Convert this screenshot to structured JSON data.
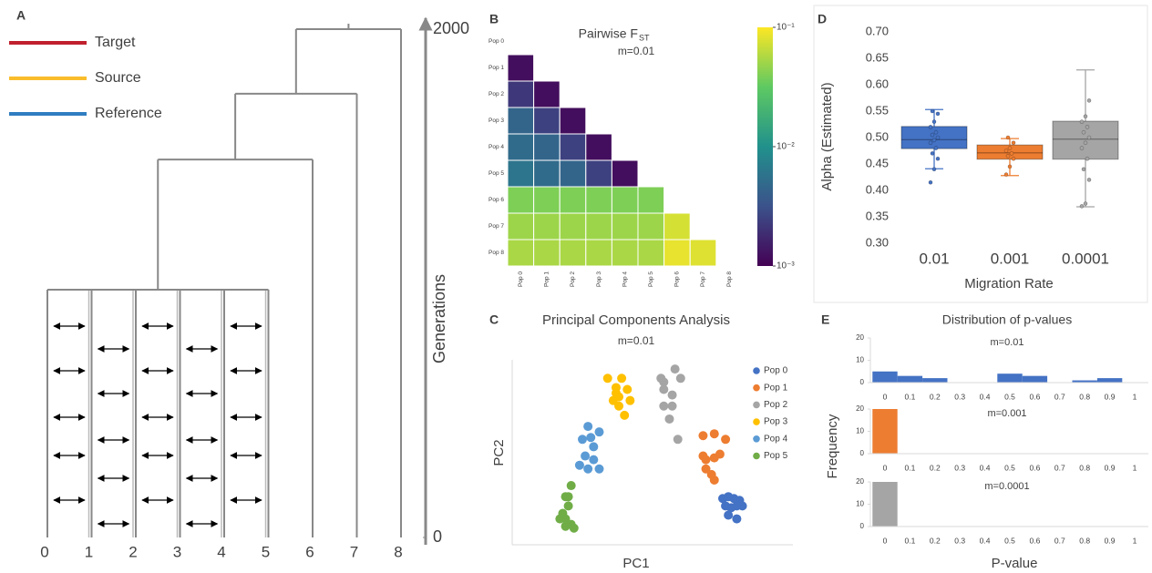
{
  "chart_data": [
    {
      "type": "tree",
      "panel": "A",
      "series": [
        {
          "name": "Target",
          "color": "#c0202e"
        },
        {
          "name": "Source",
          "color": "#f9bd2b"
        },
        {
          "name": "Reference",
          "color": "#2f7dc0"
        }
      ],
      "x": [
        0,
        1,
        2,
        3,
        4,
        5,
        6,
        7,
        8
      ],
      "merge_heights": [
        975,
        1487,
        1746,
        2000
      ],
      "ylim": [
        0,
        2000
      ],
      "yticks": [
        0,
        2000
      ],
      "ylabel": "Generations"
    },
    {
      "type": "heatmap",
      "panel": "B",
      "title": "Pairwise F",
      "title_subscript": "ST",
      "subtitle": "m=0.01",
      "categories": [
        "Pop 0",
        "Pop 1",
        "Pop 2",
        "Pop 3",
        "Pop 4",
        "Pop 5",
        "Pop 6",
        "Pop 7",
        "Pop 8"
      ],
      "values": [
        [],
        [
          0.0012
        ],
        [
          0.0022,
          0.0012
        ],
        [
          0.0045,
          0.0025,
          0.0012
        ],
        [
          0.005,
          0.0045,
          0.0025,
          0.0012
        ],
        [
          0.006,
          0.005,
          0.0045,
          0.0025,
          0.0012
        ],
        [
          0.04,
          0.04,
          0.04,
          0.04,
          0.04,
          0.04
        ],
        [
          0.05,
          0.05,
          0.05,
          0.05,
          0.05,
          0.05,
          0.075
        ],
        [
          0.055,
          0.055,
          0.055,
          0.055,
          0.055,
          0.055,
          0.085,
          0.08
        ]
      ],
      "cmap": "viridis",
      "zscale": "log",
      "zlim": [
        0.001,
        0.1
      ],
      "zticks": [
        {
          "value": 0.1,
          "label": "10⁻¹"
        },
        {
          "value": 0.01,
          "label": "10⁻²"
        },
        {
          "value": 0.001,
          "label": "10⁻³"
        }
      ]
    },
    {
      "type": "scatter",
      "panel": "C",
      "title": "Principal Components Analysis",
      "subtitle": "m=0.01",
      "xlabel": "PC1",
      "ylabel": "PC2",
      "xlim": [
        0,
        100
      ],
      "ylim": [
        0,
        100
      ],
      "series": [
        {
          "name": "Pop 0",
          "color": "#4472c4",
          "x": [
            75,
            77,
            79,
            81,
            76,
            78,
            80,
            82,
            77,
            80
          ],
          "y": [
            25,
            26,
            25,
            24,
            21,
            20,
            21,
            21,
            16,
            14
          ]
        },
        {
          "name": "Pop 1",
          "color": "#ed7d31",
          "x": [
            68,
            72,
            76,
            68,
            72,
            69,
            71,
            72,
            69,
            74
          ],
          "y": [
            59,
            60,
            57,
            48,
            47,
            41,
            38,
            35,
            46,
            49
          ]
        },
        {
          "name": "Pop 2",
          "color": "#a5a5a5",
          "x": [
            53,
            58,
            60,
            54,
            57,
            54,
            57,
            56,
            59,
            54
          ],
          "y": [
            90,
            95,
            90,
            84,
            81,
            75,
            75,
            68,
            57,
            88
          ]
        },
        {
          "name": "Pop 3",
          "color": "#ffc000",
          "x": [
            34,
            39,
            37,
            41,
            38,
            42,
            36,
            38,
            40,
            37
          ],
          "y": [
            90,
            90,
            85,
            84,
            80,
            78,
            78,
            75,
            70,
            82
          ]
        },
        {
          "name": "Pop 4",
          "color": "#5b9bd5",
          "x": [
            27,
            31,
            25,
            29,
            26,
            29,
            27,
            31,
            24,
            28
          ],
          "y": [
            64,
            61,
            57,
            53,
            48,
            46,
            41,
            41,
            43,
            58
          ]
        },
        {
          "name": "Pop 5",
          "color": "#70ad47",
          "x": [
            21,
            19,
            20,
            18,
            19,
            21,
            19,
            22,
            17,
            20
          ],
          "y": [
            32,
            26,
            21,
            17,
            14,
            11,
            10,
            9,
            14,
            26
          ]
        }
      ]
    },
    {
      "type": "box",
      "panel": "D",
      "categories": [
        "0.01",
        "0.001",
        "0.0001"
      ],
      "xlabel": "Migration Rate",
      "ylabel": "Alpha (Estimated)",
      "ylim": [
        0.3,
        0.7
      ],
      "yticks": [
        {
          "value": 0.3,
          "label": "0.30"
        },
        {
          "value": 0.35,
          "label": "0.35"
        },
        {
          "value": 0.4,
          "label": "0.40"
        },
        {
          "value": 0.45,
          "label": "0.45"
        },
        {
          "value": 0.5,
          "label": "0.50"
        },
        {
          "value": 0.55,
          "label": "0.55"
        },
        {
          "value": 0.6,
          "label": "0.60"
        },
        {
          "value": 0.65,
          "label": "0.65"
        },
        {
          "value": 0.7,
          "label": "0.70"
        }
      ],
      "boxes": [
        {
          "color": "#4472c4",
          "whisker_low": 0.441,
          "q1": 0.479,
          "median": 0.496,
          "q3": 0.521,
          "whisker_high": 0.553,
          "points": [
            0.415,
            0.44,
            0.46,
            0.47,
            0.48,
            0.49,
            0.495,
            0.5,
            0.505,
            0.51,
            0.52,
            0.53,
            0.545,
            0.55
          ]
        },
        {
          "color": "#ed7d31",
          "whisker_low": 0.428,
          "q1": 0.459,
          "median": 0.471,
          "q3": 0.486,
          "whisker_high": 0.498,
          "points": [
            0.43,
            0.445,
            0.46,
            0.465,
            0.47,
            0.475,
            0.48,
            0.49,
            0.5
          ]
        },
        {
          "color": "#a5a5a5",
          "whisker_low": 0.369,
          "q1": 0.459,
          "median": 0.497,
          "q3": 0.531,
          "whisker_high": 0.628,
          "points": [
            0.37,
            0.375,
            0.42,
            0.44,
            0.46,
            0.48,
            0.49,
            0.5,
            0.51,
            0.52,
            0.53,
            0.54,
            0.57
          ]
        }
      ]
    },
    {
      "type": "bar_panels",
      "panel": "E",
      "title": "Distribution of p-values",
      "xlabel": "P-value",
      "ylabel": "Frequency",
      "categories": [
        "0",
        "0.1",
        "0.2",
        "0.3",
        "0.4",
        "0.5",
        "0.6",
        "0.7",
        "0.8",
        "0.9",
        "1"
      ],
      "ylim": [
        0,
        20
      ],
      "yticks": [
        0,
        10,
        20
      ],
      "series": [
        {
          "name": "m=0.01",
          "color": "#4472c4",
          "values": [
            5,
            3,
            2,
            0,
            0,
            4,
            3,
            0,
            1,
            2,
            0
          ]
        },
        {
          "name": "m=0.001",
          "color": "#ed7d31",
          "values": [
            20,
            0,
            0,
            0,
            0,
            0,
            0,
            0,
            0,
            0,
            0
          ]
        },
        {
          "name": "m=0.0001",
          "color": "#a5a5a5",
          "values": [
            20,
            0,
            0,
            0,
            0,
            0,
            0,
            0,
            0,
            0,
            0
          ]
        }
      ]
    }
  ]
}
